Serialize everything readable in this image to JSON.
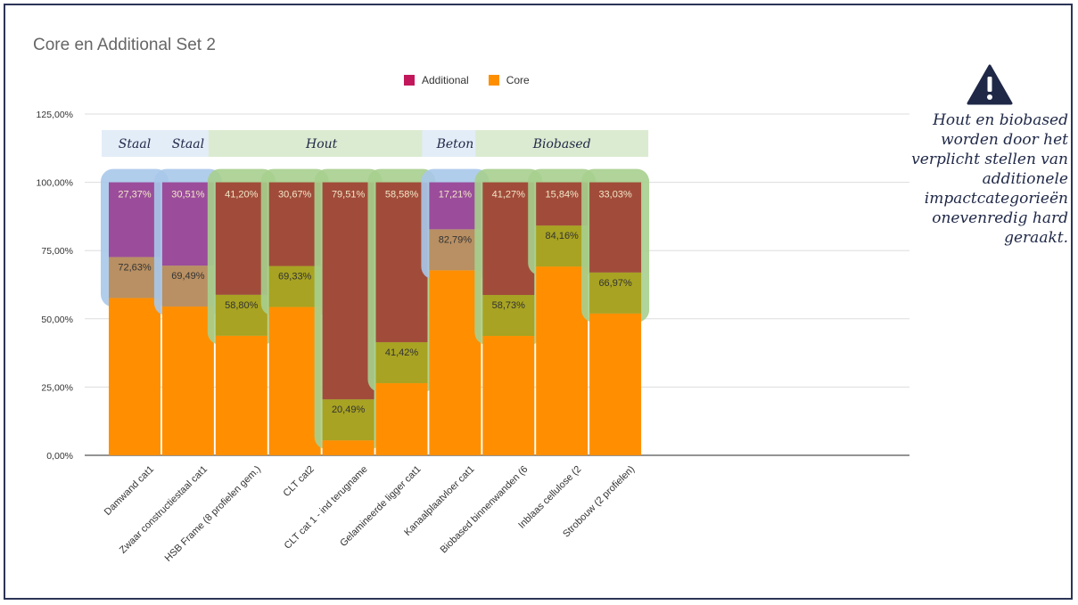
{
  "chart_data": {
    "type": "bar",
    "title": "Core en Additional Set 2",
    "stacked": true,
    "categories": [
      "Damwand cat1",
      "Zwaar constructiestaal cat1",
      "HSB Frame (8 profielen gem.)",
      "CLT cat2",
      "CLT cat 1 - ind terugname",
      "Gelamineerde ligger cat1",
      "Kanaalplaatvloer cat1",
      "Biobased binnenwanden (6",
      "Inblaas cellulose (2",
      "Strobouw (2 profielen)"
    ],
    "series": [
      {
        "name": "Core",
        "values": [
          72.63,
          69.49,
          58.8,
          69.33,
          20.49,
          41.42,
          82.79,
          58.73,
          84.16,
          66.97
        ],
        "labels": [
          "72,63%",
          "69,49%",
          "58,80%",
          "69,33%",
          "20,49%",
          "41,42%",
          "82,79%",
          "58,73%",
          "84,16%",
          "66,97%"
        ]
      },
      {
        "name": "Additional",
        "values": [
          27.37,
          30.51,
          41.2,
          30.67,
          79.51,
          58.58,
          17.21,
          41.27,
          15.84,
          33.03
        ],
        "labels": [
          "27,37%",
          "30,51%",
          "41,20%",
          "30,67%",
          "79,51%",
          "58,58%",
          "17,21%",
          "41,27%",
          "15,84%",
          "33,03%"
        ]
      }
    ],
    "material": [
      "staal",
      "staal",
      "hout",
      "hout",
      "hout",
      "hout",
      "beton",
      "bio",
      "bio",
      "bio"
    ],
    "groups": [
      {
        "label": "Staal",
        "from": 0,
        "to": 0,
        "type": "staal"
      },
      {
        "label": "Staal",
        "from": 1,
        "to": 1,
        "type": "staal"
      },
      {
        "label": "Hout",
        "from": 2,
        "to": 5,
        "type": "hout"
      },
      {
        "label": "Beton",
        "from": 6,
        "to": 6,
        "type": "beton"
      },
      {
        "label": "Biobased",
        "from": 7,
        "to": 9,
        "type": "bio"
      }
    ],
    "ylim": [
      0,
      125
    ],
    "yticks": [
      0,
      25,
      50,
      75,
      100,
      125
    ],
    "ytick_labels": [
      "0,00%",
      "25,00%",
      "50,00%",
      "75,00%",
      "100,00%",
      "125,00%"
    ],
    "grid": true,
    "legend": "top-center"
  },
  "legend": [
    {
      "label": "Additional",
      "color": "#c2185b"
    },
    {
      "label": "Core",
      "color": "#ff8f00"
    }
  ],
  "colors": {
    "core": "#ff8f00",
    "staal_top": "#9b4d9b",
    "staal_mid": "#b99063",
    "staal_highlight": "#a8c8ea",
    "hout_top": "#a14c3a",
    "hout_mid": "#a8a322",
    "hout_highlight": "#a7cf8e",
    "group_staal": "#e3edf8",
    "group_hout": "#dbebd1"
  },
  "note": "Hout en biobased worden door het verplicht stellen van additionele impactcategorieën onevenredig hard geraakt.",
  "warning_icon": "warning-triangle-icon"
}
